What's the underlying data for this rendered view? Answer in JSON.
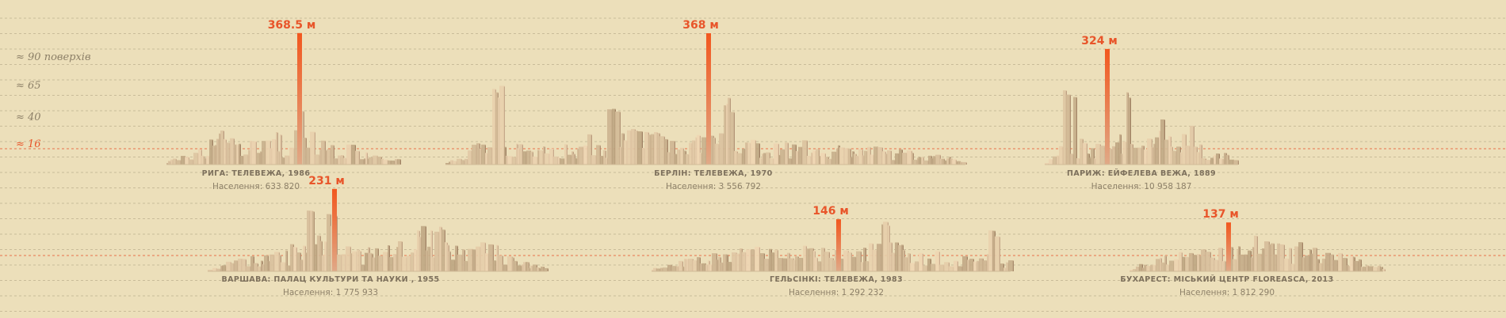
{
  "chart_data": {
    "type": "bar",
    "floor_labels": [
      {
        "text": "≈ 90 поверхів",
        "height_m": 300,
        "red": false
      },
      {
        "text": "≈ 65",
        "height_m": 220,
        "red": false
      },
      {
        "text": "≈ 40",
        "height_m": 130,
        "red": false
      },
      {
        "text": "≈ 16",
        "height_m": 55,
        "red": true
      }
    ],
    "panels": [
      {
        "name": "РИГА: ТЕЛЕВЕЖА, 1986",
        "population": "Населення: 633 820",
        "peak_label": "368.5 м",
        "peak_height": 368.5,
        "scale": 0.5,
        "peaks": [
          [
            0.57,
            140
          ],
          [
            0.23,
            100
          ],
          [
            0.43,
            75
          ]
        ]
      },
      {
        "name": "БЕРЛІН: ТЕЛЕВЕЖА, 1970",
        "population": "Населення: 3 556 792",
        "peak_label": "368 м",
        "peak_height": 368,
        "scale": 0.5,
        "peaks": [
          [
            0.1,
            220
          ],
          [
            0.32,
            150
          ],
          [
            0.54,
            172
          ],
          [
            0.4,
            90
          ]
        ]
      },
      {
        "name": "ПАРИЖ: ЕЙФЕЛЕВА ВЕЖА, 1889",
        "population": "Населення: 10 958 187",
        "peak_label": "324 м",
        "peak_height": 324,
        "scale": 0.5,
        "peaks": [
          [
            0.15,
            210
          ],
          [
            0.1,
            190
          ],
          [
            0.42,
            190
          ],
          [
            0.6,
            120
          ],
          [
            0.75,
            110
          ]
        ]
      },
      {
        "name": "ВАРШАВА: ПАЛАЦ КУЛЬТУРИ ТА НАУКИ , 1955",
        "population": "Населення: 1 775 933",
        "peak_label": "231 м",
        "peak_height": 231,
        "scale": 0.5,
        "peaks": [
          [
            0.3,
            170
          ],
          [
            0.36,
            150
          ],
          [
            0.62,
            105
          ],
          [
            0.68,
            120
          ],
          [
            0.8,
            80
          ]
        ]
      },
      {
        "name": "ГЕЛЬСІНКІ: ТЕЛЕВЕЖА, 1983",
        "population": "Населення: 1 292 232",
        "peak_label": "146 м",
        "peak_height": 146,
        "scale": 0.5,
        "peaks": [
          [
            0.65,
            130
          ],
          [
            0.95,
            110
          ],
          [
            0.28,
            70
          ]
        ]
      },
      {
        "name": "БУХАРЕСТ: МІСЬКИЙ ЦЕНТР FLOREASCA, 2013",
        "population": "Населення: 1 812 290",
        "peak_label": "137 м",
        "peak_height": 137,
        "scale": 0.5,
        "peaks": [
          [
            0.55,
            75
          ],
          [
            0.72,
            60
          ]
        ]
      }
    ]
  }
}
